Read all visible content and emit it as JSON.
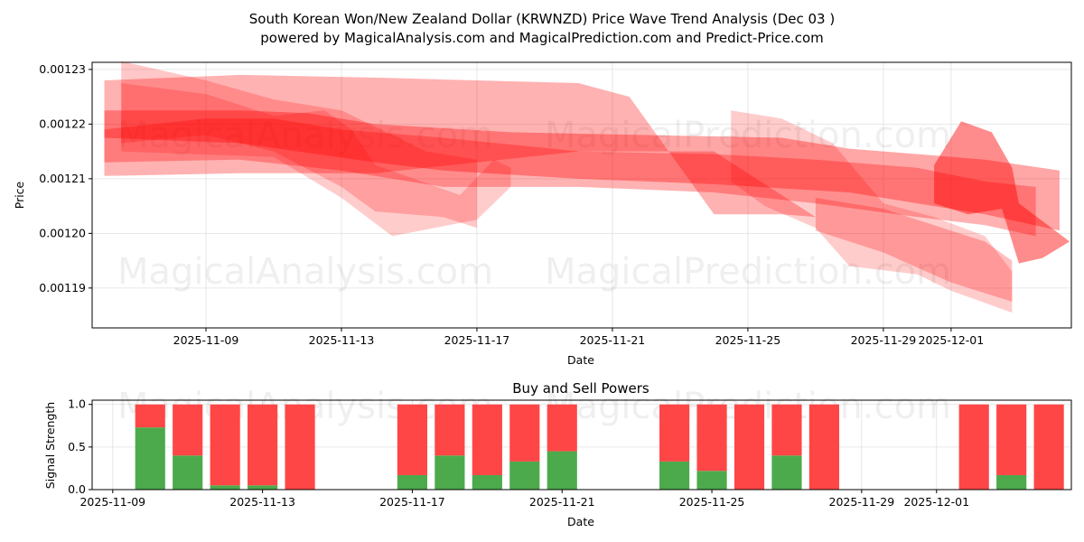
{
  "title_line1": "South Korean Won/New Zealand Dollar (KRWNZD) Price Wave Trend Analysis (Dec 03 )",
  "title_line2": "powered by MagicalAnalysis.com and MagicalPrediction.com and Predict-Price.com",
  "watermarks": [
    "MagicalAnalysis.com",
    "MagicalPrediction.com"
  ],
  "colors": {
    "band": "#ff0000",
    "buy": "#4caa4c",
    "sell": "#ff4646"
  },
  "chart_data": [
    {
      "type": "area",
      "title": "",
      "xlabel": "Date",
      "ylabel": "Price",
      "x_start": "2025-11-06",
      "xlim_days": [
        -0.36,
        28.55
      ],
      "ylim": [
        0.0011827,
        0.0012313
      ],
      "xticks": [
        {
          "day": 3,
          "label": "2025-11-09"
        },
        {
          "day": 7,
          "label": "2025-11-13"
        },
        {
          "day": 11,
          "label": "2025-11-17"
        },
        {
          "day": 15,
          "label": "2025-11-21"
        },
        {
          "day": 19,
          "label": "2025-11-25"
        },
        {
          "day": 23,
          "label": "2025-11-29"
        },
        {
          "day": 25,
          "label": "2025-12-01"
        }
      ],
      "yticks": [
        {
          "value": 0.00119,
          "label": "0.00119"
        },
        {
          "value": 0.0012,
          "label": "0.00120"
        },
        {
          "value": 0.00121,
          "label": "0.00121"
        },
        {
          "value": 0.00122,
          "label": "0.00122"
        },
        {
          "value": 0.00123,
          "label": "0.00123"
        }
      ],
      "bands": [
        {
          "alpha": 0.3,
          "upper": [
            [
              0,
              0.001228
            ],
            [
              4,
              0.001229
            ],
            [
              8,
              0.0012285
            ],
            [
              11,
              0.001228
            ],
            [
              14,
              0.0012275
            ],
            [
              15.5,
              0.001225
            ],
            [
              18,
              0.0012035
            ],
            [
              20,
              0.0012035
            ],
            [
              21,
              0.001203
            ]
          ],
          "lower": [
            [
              21,
              0.001203
            ],
            [
              18,
              0.001215
            ],
            [
              14,
              0.001215
            ],
            [
              8,
              0.001211
            ],
            [
              4,
              0.001211
            ],
            [
              0,
              0.0012105
            ]
          ]
        },
        {
          "alpha": 0.35,
          "upper": [
            [
              0,
              0.0012225
            ],
            [
              4,
              0.0012225
            ],
            [
              6,
              0.001222
            ],
            [
              8,
              0.00122
            ],
            [
              12,
              0.0012185
            ],
            [
              16,
              0.001218
            ],
            [
              20,
              0.0012175
            ],
            [
              22,
              0.0012155
            ],
            [
              24,
              0.0012145
            ],
            [
              26,
              0.0012135
            ],
            [
              28.2,
              0.0012115
            ]
          ],
          "lower": [
            [
              28.2,
              0.0012005
            ],
            [
              26,
              0.0012035
            ],
            [
              22,
              0.0012075
            ],
            [
              18,
              0.001209
            ],
            [
              14,
              0.00121
            ],
            [
              10,
              0.0012115
            ],
            [
              8,
              0.001213
            ],
            [
              4,
              0.0012165
            ],
            [
              0,
              0.0012175
            ]
          ]
        },
        {
          "alpha": 0.3,
          "upper": [
            [
              0,
              0.001219
            ],
            [
              3,
              0.001221
            ],
            [
              5,
              0.001221
            ],
            [
              7,
              0.001219
            ],
            [
              10,
              0.0012175
            ],
            [
              14,
              0.001215
            ],
            [
              18,
              0.0012145
            ],
            [
              21,
              0.0012135
            ],
            [
              24,
              0.001212
            ],
            [
              26,
              0.0012095
            ],
            [
              27.5,
              0.0012085
            ]
          ],
          "lower": [
            [
              27.5,
              0.0011995
            ],
            [
              26,
              0.0012015
            ],
            [
              24,
              0.001203
            ],
            [
              21,
              0.0012055
            ],
            [
              18,
              0.0012075
            ],
            [
              14,
              0.0012085
            ],
            [
              10,
              0.0012085
            ],
            [
              7,
              0.0012115
            ],
            [
              4,
              0.0012135
            ],
            [
              0,
              0.001213
            ]
          ]
        },
        {
          "alpha": 0.22,
          "upper": [
            [
              0.5,
              0.0012315
            ],
            [
              3,
              0.001228
            ],
            [
              5,
              0.0012245
            ],
            [
              7,
              0.0012225
            ],
            [
              8,
              0.0012195
            ],
            [
              9.5,
              0.001215
            ],
            [
              11,
              0.0012135
            ]
          ],
          "lower": [
            [
              11,
              0.001201
            ],
            [
              10,
              0.001203
            ],
            [
              8,
              0.001204
            ],
            [
              7,
              0.0012085
            ],
            [
              5,
              0.001215
            ],
            [
              3,
              0.001218
            ],
            [
              0.5,
              0.0012165
            ]
          ]
        },
        {
          "alpha": 0.2,
          "upper": [
            [
              0.5,
              0.0012275
            ],
            [
              3,
              0.0012255
            ],
            [
              5,
              0.0012215
            ],
            [
              6.5,
              0.0012225
            ],
            [
              7.3,
              0.001219
            ],
            [
              8,
              0.0012125
            ],
            [
              10.5,
              0.001207
            ],
            [
              11.5,
              0.0012135
            ],
            [
              12,
              0.001212
            ]
          ],
          "lower": [
            [
              12,
              0.0012085
            ],
            [
              11,
              0.0012025
            ],
            [
              8.5,
              0.0011995
            ],
            [
              7,
              0.0012065
            ],
            [
              5,
              0.001214
            ],
            [
              0.5,
              0.001215
            ]
          ]
        },
        {
          "alpha": 0.2,
          "upper": [
            [
              18.5,
              0.0012225
            ],
            [
              20,
              0.001221
            ],
            [
              21.5,
              0.0012165
            ],
            [
              23,
              0.0012055
            ],
            [
              24.5,
              0.001203
            ],
            [
              26,
              0.0011995
            ],
            [
              26.8,
              0.001193
            ]
          ],
          "lower": [
            [
              26.8,
              0.0011855
            ],
            [
              25,
              0.0011895
            ],
            [
              24,
              0.0011925
            ],
            [
              22,
              0.001194
            ],
            [
              21,
              0.001201
            ],
            [
              19.5,
              0.001205
            ],
            [
              18.5,
              0.0012095
            ]
          ]
        },
        {
          "alpha": 0.25,
          "upper": [
            [
              21,
              0.0012065
            ],
            [
              23,
              0.0012045
            ],
            [
              24.5,
              0.0012015
            ],
            [
              26,
              0.0011985
            ],
            [
              26.8,
              0.001195
            ]
          ],
          "lower": [
            [
              26.8,
              0.0011875
            ],
            [
              25,
              0.001191
            ],
            [
              23,
              0.0011965
            ],
            [
              21,
              0.0012005
            ]
          ]
        },
        {
          "alpha": 0.45,
          "upper": [
            [
              24.5,
              0.0012125
            ],
            [
              25.3,
              0.0012205
            ],
            [
              26.2,
              0.0012185
            ],
            [
              26.8,
              0.001212
            ],
            [
              27,
              0.0012055
            ],
            [
              28.5,
              0.0011985
            ]
          ],
          "lower": [
            [
              28.5,
              0.0011985
            ],
            [
              27.7,
              0.0011955
            ],
            [
              27,
              0.0011945
            ],
            [
              26.5,
              0.0012045
            ],
            [
              25.5,
              0.0012035
            ],
            [
              24.5,
              0.0012055
            ]
          ]
        }
      ]
    },
    {
      "type": "bar",
      "title": "Buy and Sell Powers",
      "xlabel": "Date",
      "ylabel": "Signal Strength",
      "ylim": [
        0,
        1.05
      ],
      "x_start": "2025-11-09",
      "xlim_days": [
        -0.55,
        25.6
      ],
      "xticks": [
        {
          "day": 0,
          "label": "2025-11-09"
        },
        {
          "day": 4,
          "label": "2025-11-13"
        },
        {
          "day": 8,
          "label": "2025-11-17"
        },
        {
          "day": 12,
          "label": "2025-11-21"
        },
        {
          "day": 16,
          "label": "2025-11-25"
        },
        {
          "day": 20,
          "label": "2025-11-29"
        },
        {
          "day": 22,
          "label": "2025-12-01"
        }
      ],
      "yticks": [
        {
          "value": 0,
          "label": "0.0"
        },
        {
          "value": 0.5,
          "label": "0.5"
        },
        {
          "value": 1.0,
          "label": "1.0"
        }
      ],
      "categories": [
        "2025-11-10",
        "2025-11-11",
        "2025-11-12",
        "2025-11-13",
        "2025-11-14",
        "2025-11-17",
        "2025-11-18",
        "2025-11-19",
        "2025-11-20",
        "2025-11-21",
        "2025-11-24",
        "2025-11-25",
        "2025-11-26",
        "2025-11-27",
        "2025-11-28",
        "2025-12-02",
        "2025-12-03",
        "2025-12-04"
      ],
      "day_index": [
        1,
        2,
        3,
        4,
        5,
        8,
        9,
        10,
        11,
        12,
        15,
        16,
        17,
        18,
        19,
        23,
        24,
        25
      ],
      "series": [
        {
          "name": "Buy",
          "values": [
            0.73,
            0.4,
            0.05,
            0.05,
            0.0,
            0.17,
            0.4,
            0.17,
            0.33,
            0.45,
            0.33,
            0.22,
            0.0,
            0.4,
            0.0,
            0.0,
            0.17,
            0.0
          ]
        },
        {
          "name": "Sell",
          "values": [
            0.27,
            0.6,
            0.95,
            0.95,
            1.0,
            0.83,
            0.6,
            0.83,
            0.67,
            0.55,
            0.67,
            0.78,
            1.0,
            0.6,
            1.0,
            1.0,
            0.83,
            1.0
          ]
        }
      ]
    }
  ]
}
